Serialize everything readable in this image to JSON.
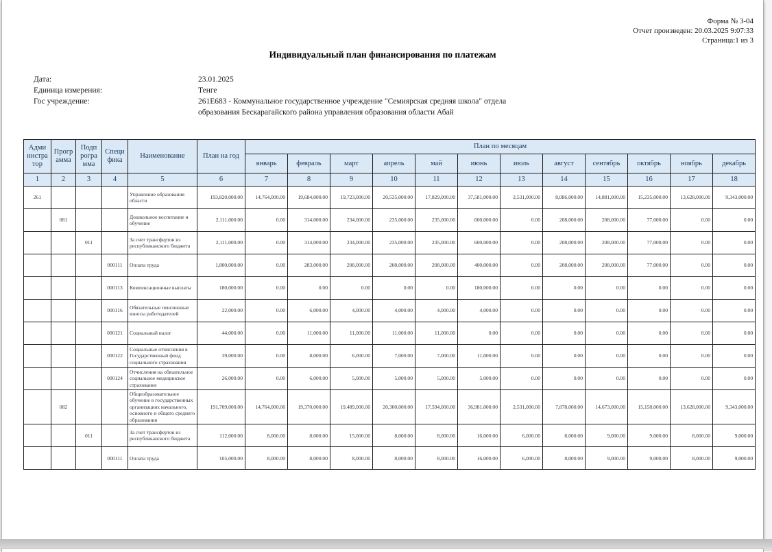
{
  "page_header": {
    "form_number": "Форма № 3-04",
    "report_generated": "Отчет произведен: 20.03.2025 9:07:33",
    "page_info": "Страница:1 из 3",
    "title": "Индивидуальный план финансирования по платежам"
  },
  "meta": {
    "date_label": "Дата:",
    "date_value": "23.01.2025",
    "unit_label": "Единица измерения:",
    "unit_value": "Тенге",
    "institution_label": "Гос учреждение:",
    "institution_value": "261E683 - Коммунальное государственное учреждение \"Семиярская средняя школа\" отдела образования Бескарагайского района управления образования области Абай"
  },
  "table": {
    "header": {
      "administrator": "Адми\nнистра\nтор",
      "program": "Прогр\nамма",
      "subprogram": "Подп\nрогра\nмма",
      "specifics": "Специ\nфика",
      "name": "Наименование",
      "plan_year": "План на год",
      "plan_by_months": "План по месяцам",
      "months": [
        "январь",
        "февраль",
        "март",
        "апрель",
        "май",
        "июнь",
        "июль",
        "август",
        "сентябрь",
        "октябрь",
        "ноябрь",
        "декабрь"
      ],
      "column_numbers": [
        "1",
        "2",
        "3",
        "4",
        "5",
        "6",
        "7",
        "8",
        "9",
        "10",
        "11",
        "12",
        "13",
        "14",
        "15",
        "16",
        "17",
        "18"
      ]
    },
    "rows": [
      {
        "administrator": "261",
        "program": "",
        "subprogram": "",
        "specifics": "",
        "name": "Управление образования области",
        "plan_year": "193,820,000.00",
        "months": [
          "14,764,000.00",
          "19,684,000.00",
          "19,723,000.00",
          "20,535,000.00",
          "17,829,000.00",
          "37,581,000.00",
          "2,531,000.00",
          "8,086,000.00",
          "14,881,000.00",
          "15,235,000.00",
          "13,628,000.00",
          "9,343,000.00"
        ]
      },
      {
        "administrator": "",
        "program": "081",
        "subprogram": "",
        "specifics": "",
        "name": "Дошкольное воспитание и обучение",
        "plan_year": "2,111,000.00",
        "months": [
          "0.00",
          "314,000.00",
          "234,000.00",
          "235,000.00",
          "235,000.00",
          "600,000.00",
          "0.00",
          "208,000.00",
          "208,000.00",
          "77,000.00",
          "0.00",
          "0.00"
        ]
      },
      {
        "administrator": "",
        "program": "",
        "subprogram": "011",
        "specifics": "",
        "name": "За счет трансфертов из республиканского бюджета",
        "plan_year": "2,111,000.00",
        "months": [
          "0.00",
          "314,000.00",
          "234,000.00",
          "235,000.00",
          "235,000.00",
          "600,000.00",
          "0.00",
          "208,000.00",
          "208,000.00",
          "77,000.00",
          "0.00",
          "0.00"
        ]
      },
      {
        "administrator": "",
        "program": "",
        "subprogram": "",
        "specifics": "000111",
        "name": "Оплата труда",
        "plan_year": "1,800,000.00",
        "months": [
          "0.00",
          "283,000.00",
          "208,000.00",
          "208,000.00",
          "208,000.00",
          "400,000.00",
          "0.00",
          "208,000.00",
          "208,000.00",
          "77,000.00",
          "0.00",
          "0.00"
        ]
      },
      {
        "administrator": "",
        "program": "",
        "subprogram": "",
        "specifics": "000113",
        "name": "Компенсационные выплаты",
        "plan_year": "180,000.00",
        "months": [
          "0.00",
          "0.00",
          "0.00",
          "0.00",
          "0.00",
          "180,000.00",
          "0.00",
          "0.00",
          "0.00",
          "0.00",
          "0.00",
          "0.00"
        ]
      },
      {
        "administrator": "",
        "program": "",
        "subprogram": "",
        "specifics": "000116",
        "name": "Обязательные пенсионные взносы работодателей",
        "plan_year": "22,000.00",
        "months": [
          "0.00",
          "6,000.00",
          "4,000.00",
          "4,000.00",
          "4,000.00",
          "4,000.00",
          "0.00",
          "0.00",
          "0.00",
          "0.00",
          "0.00",
          "0.00"
        ]
      },
      {
        "administrator": "",
        "program": "",
        "subprogram": "",
        "specifics": "000121",
        "name": "Социальный налог",
        "plan_year": "44,000.00",
        "months": [
          "0.00",
          "11,000.00",
          "11,000.00",
          "11,000.00",
          "11,000.00",
          "0.00",
          "0.00",
          "0.00",
          "0.00",
          "0.00",
          "0.00",
          "0.00"
        ]
      },
      {
        "administrator": "",
        "program": "",
        "subprogram": "",
        "specifics": "000122",
        "name": "Социальные отчисления в Государственный фонд социального страхования",
        "plan_year": "39,000.00",
        "months": [
          "0.00",
          "8,000.00",
          "6,000.00",
          "7,000.00",
          "7,000.00",
          "11,000.00",
          "0.00",
          "0.00",
          "0.00",
          "0.00",
          "0.00",
          "0.00"
        ]
      },
      {
        "administrator": "",
        "program": "",
        "subprogram": "",
        "specifics": "000124",
        "name": "Отчисления на обязательное социальное медицинское страхование",
        "plan_year": "26,000.00",
        "months": [
          "0.00",
          "6,000.00",
          "5,000.00",
          "5,000.00",
          "5,000.00",
          "5,000.00",
          "0.00",
          "0.00",
          "0.00",
          "0.00",
          "0.00",
          "0.00"
        ]
      },
      {
        "administrator": "",
        "program": "082",
        "subprogram": "",
        "specifics": "",
        "name": "Общеобразовательное обучение в государственных организациях начального, основного и общего среднего образования",
        "plan_year": "191,709,000.00",
        "months": [
          "14,764,000.00",
          "19,370,000.00",
          "19,489,000.00",
          "20,300,000.00",
          "17,594,000.00",
          "36,981,000.00",
          "2,531,000.00",
          "7,878,000.00",
          "14,673,000.00",
          "15,158,000.00",
          "13,628,000.00",
          "9,343,000.00"
        ]
      },
      {
        "administrator": "",
        "program": "",
        "subprogram": "011",
        "specifics": "",
        "name": "За счет трансфертов из республиканского бюджета",
        "plan_year": "112,000.00",
        "months": [
          "8,000.00",
          "8,000.00",
          "15,000.00",
          "8,000.00",
          "8,000.00",
          "16,000.00",
          "6,000.00",
          "8,000.00",
          "9,000.00",
          "9,000.00",
          "8,000.00",
          "9,000.00"
        ]
      },
      {
        "administrator": "",
        "program": "",
        "subprogram": "",
        "specifics": "000111",
        "name": "Оплата труда",
        "plan_year": "105,000.00",
        "months": [
          "8,000.00",
          "8,000.00",
          "8,000.00",
          "8,000.00",
          "8,000.00",
          "16,000.00",
          "6,000.00",
          "8,000.00",
          "9,000.00",
          "9,000.00",
          "8,000.00",
          "9,000.00"
        ]
      }
    ]
  }
}
